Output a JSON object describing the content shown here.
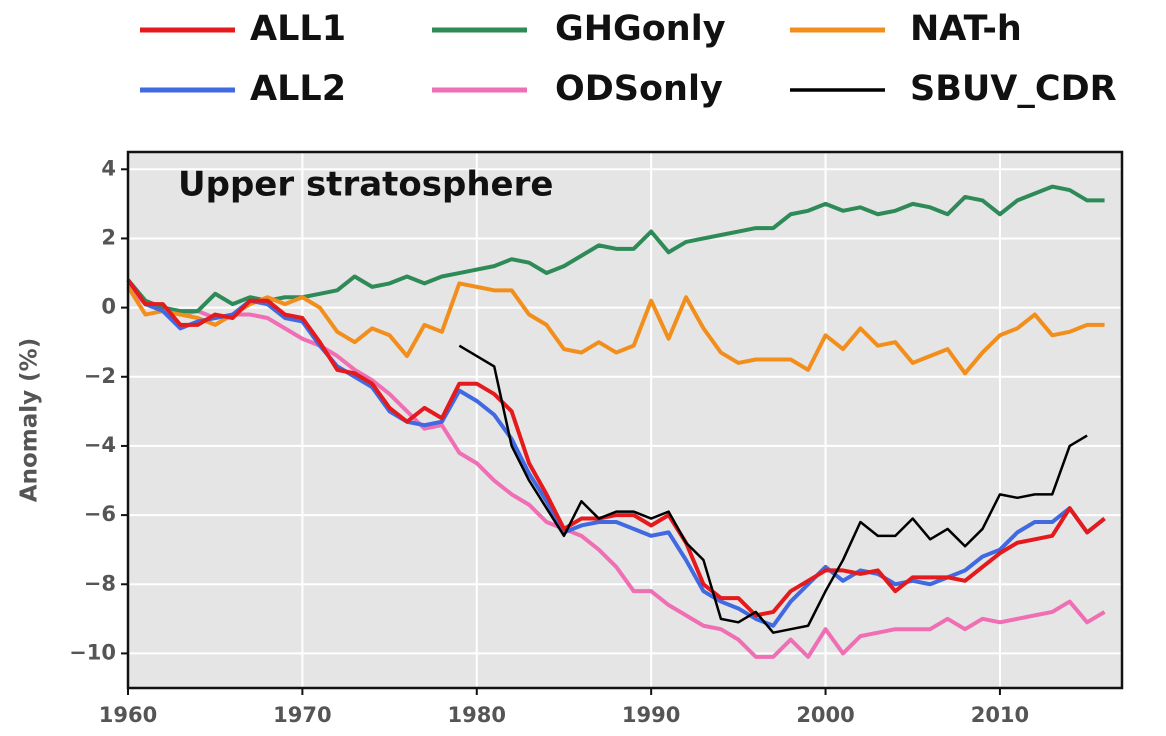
{
  "chart_data": {
    "type": "line",
    "annotation": "Upper stratosphere",
    "ylabel": "Anomaly (%)",
    "x": [
      1960,
      1961,
      1962,
      1963,
      1964,
      1965,
      1966,
      1967,
      1968,
      1969,
      1970,
      1971,
      1972,
      1973,
      1974,
      1975,
      1976,
      1977,
      1978,
      1979,
      1980,
      1981,
      1982,
      1983,
      1984,
      1985,
      1986,
      1987,
      1988,
      1989,
      1990,
      1991,
      1992,
      1993,
      1994,
      1995,
      1996,
      1997,
      1998,
      1999,
      2000,
      2001,
      2002,
      2003,
      2004,
      2005,
      2006,
      2007,
      2008,
      2009,
      2010,
      2011,
      2012,
      2013,
      2014,
      2015,
      2016
    ],
    "xlim": [
      1960,
      2017
    ],
    "xticks": [
      1960,
      1970,
      1980,
      1990,
      2000,
      2010
    ],
    "ylim": [
      -11,
      4.5
    ],
    "yticks": [
      {
        "value": -10,
        "label": "−10"
      },
      {
        "value": -8,
        "label": "−8"
      },
      {
        "value": -6,
        "label": "−6"
      },
      {
        "value": -4,
        "label": "−4"
      },
      {
        "value": -2,
        "label": "−2"
      },
      0,
      2,
      4
    ],
    "grid": true,
    "legend": "top",
    "series": [
      {
        "name": "ALL1",
        "color": "#e41a1c",
        "width": 4,
        "values": [
          0.8,
          0.1,
          0.1,
          -0.5,
          -0.5,
          -0.2,
          -0.3,
          0.2,
          0.2,
          -0.2,
          -0.3,
          -1.0,
          -1.8,
          -1.9,
          -2.2,
          -2.9,
          -3.3,
          -2.9,
          -3.2,
          -2.2,
          -2.2,
          -2.5,
          -3.0,
          -4.5,
          -5.4,
          -6.4,
          -6.1,
          -6.1,
          -6.0,
          -6.0,
          -6.3,
          -6.0,
          -6.8,
          -8.0,
          -8.4,
          -8.4,
          -8.9,
          -8.8,
          -8.2,
          -7.9,
          -7.6,
          -7.6,
          -7.7,
          -7.6,
          -8.2,
          -7.8,
          -7.8,
          -7.8,
          -7.9,
          -7.5,
          -7.1,
          -6.8,
          -6.7,
          -6.6,
          -5.8,
          -6.5,
          -6.1
        ]
      },
      {
        "name": "ALL2",
        "color": "#4169e1",
        "width": 4,
        "values": [
          0.8,
          0.1,
          -0.1,
          -0.6,
          -0.4,
          -0.3,
          -0.2,
          0.2,
          0.1,
          -0.3,
          -0.4,
          -1.1,
          -1.7,
          -2.0,
          -2.3,
          -3.0,
          -3.3,
          -3.4,
          -3.3,
          -2.4,
          -2.7,
          -3.1,
          -3.8,
          -4.8,
          -5.6,
          -6.5,
          -6.3,
          -6.2,
          -6.2,
          -6.4,
          -6.6,
          -6.5,
          -7.3,
          -8.2,
          -8.5,
          -8.7,
          -9.0,
          -9.2,
          -8.5,
          -8.0,
          -7.5,
          -7.9,
          -7.6,
          -7.7,
          -8.0,
          -7.9,
          -8.0,
          -7.8,
          -7.6,
          -7.2,
          -7.0,
          -6.5,
          -6.2,
          -6.2,
          -5.8,
          -6.5,
          -6.1
        ]
      },
      {
        "name": "GHGonly",
        "color": "#2e8b57",
        "width": 4,
        "values": [
          0.8,
          0.2,
          0.0,
          -0.1,
          -0.1,
          0.4,
          0.1,
          0.3,
          0.2,
          0.3,
          0.3,
          0.4,
          0.5,
          0.9,
          0.6,
          0.7,
          0.9,
          0.7,
          0.9,
          1.0,
          1.1,
          1.2,
          1.4,
          1.3,
          1.0,
          1.2,
          1.5,
          1.8,
          1.7,
          1.7,
          2.2,
          1.6,
          1.9,
          2.0,
          2.1,
          2.2,
          2.3,
          2.3,
          2.7,
          2.8,
          3.0,
          2.8,
          2.9,
          2.7,
          2.8,
          3.0,
          2.9,
          2.7,
          3.2,
          3.1,
          2.7,
          3.1,
          3.3,
          3.5,
          3.4,
          3.1,
          3.1
        ]
      },
      {
        "name": "ODSonly",
        "color": "#f06eb4",
        "width": 4,
        "values": [
          0.6,
          0.1,
          0.0,
          -0.2,
          -0.1,
          -0.3,
          -0.2,
          -0.2,
          -0.3,
          -0.6,
          -0.9,
          -1.1,
          -1.4,
          -1.8,
          -2.1,
          -2.5,
          -3.0,
          -3.5,
          -3.4,
          -4.2,
          -4.5,
          -5.0,
          -5.4,
          -5.7,
          -6.2,
          -6.4,
          -6.6,
          -7.0,
          -7.5,
          -8.2,
          -8.2,
          -8.6,
          -8.9,
          -9.2,
          -9.3,
          -9.6,
          -10.1,
          -10.1,
          -9.6,
          -10.1,
          -9.3,
          -10.0,
          -9.5,
          -9.4,
          -9.3,
          -9.3,
          -9.3,
          -9.0,
          -9.3,
          -9.0,
          -9.1,
          -9.0,
          -8.9,
          -8.8,
          -8.5,
          -9.1,
          -8.8
        ]
      },
      {
        "name": "NAT-h",
        "color": "#f28e1c",
        "width": 4,
        "values": [
          0.6,
          -0.2,
          -0.1,
          -0.2,
          -0.3,
          -0.5,
          -0.2,
          0.1,
          0.3,
          0.1,
          0.3,
          0.0,
          -0.7,
          -1.0,
          -0.6,
          -0.8,
          -1.4,
          -0.5,
          -0.7,
          0.7,
          0.6,
          0.5,
          0.5,
          -0.2,
          -0.5,
          -1.2,
          -1.3,
          -1.0,
          -1.3,
          -1.1,
          0.2,
          -0.9,
          0.3,
          -0.6,
          -1.3,
          -1.6,
          -1.5,
          -1.5,
          -1.5,
          -1.8,
          -0.8,
          -1.2,
          -0.6,
          -1.1,
          -1.0,
          -1.6,
          -1.4,
          -1.2,
          -1.9,
          -1.3,
          -0.8,
          -0.6,
          -0.2,
          -0.8,
          -0.7,
          -0.5,
          -0.5
        ]
      },
      {
        "name": "SBUV_CDR",
        "color": "#000000",
        "width": 2.5,
        "values": [
          null,
          null,
          null,
          null,
          null,
          null,
          null,
          null,
          null,
          null,
          null,
          null,
          null,
          null,
          null,
          null,
          null,
          null,
          null,
          -1.1,
          -1.4,
          -1.7,
          -4.0,
          -5.0,
          -5.8,
          -6.6,
          -5.6,
          -6.1,
          -5.9,
          -5.9,
          -6.1,
          -5.9,
          -6.8,
          -7.3,
          -9.0,
          -9.1,
          -8.8,
          -9.4,
          -9.3,
          -9.2,
          -8.2,
          -7.3,
          -6.2,
          -6.6,
          -6.6,
          -6.1,
          -6.7,
          -6.4,
          -6.9,
          -6.4,
          -5.4,
          -5.5,
          -5.4,
          -5.4,
          -4.0,
          -3.7,
          null
        ]
      }
    ]
  }
}
